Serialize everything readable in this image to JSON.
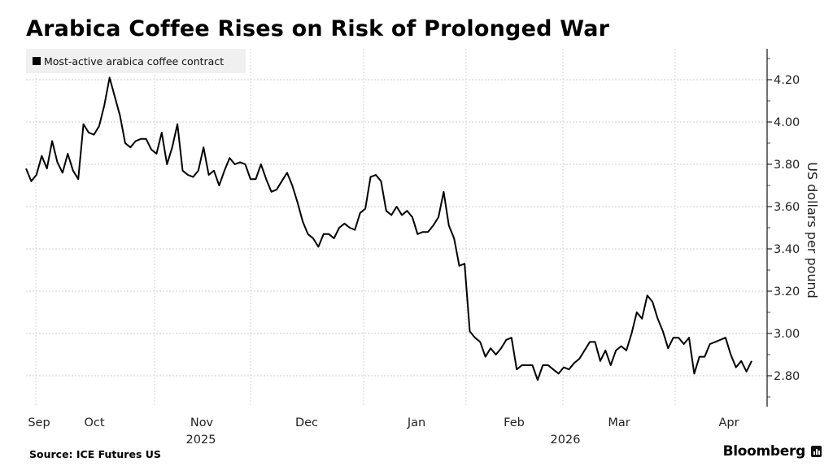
{
  "chart_data": {
    "type": "line",
    "title": "Arabica Coffee Rises on Risk of Prolonged War",
    "legend": [
      "Most-active arabica coffee contract"
    ],
    "legend_position": "top-left",
    "xlabel": "",
    "ylabel": "US dollars per pound",
    "y_axis_side": "right",
    "ylim": [
      2.66,
      4.34
    ],
    "yticks": [
      "2.80",
      "3.00",
      "3.20",
      "3.40",
      "3.60",
      "3.80",
      "4.00",
      "4.20"
    ],
    "ytick_values": [
      2.8,
      3.0,
      3.2,
      3.4,
      3.6,
      3.8,
      4.0,
      4.2
    ],
    "x_month_labels": [
      "Sep",
      "Oct",
      "Nov",
      "Dec",
      "Jan",
      "Feb",
      "Mar",
      "Apr"
    ],
    "x_year_labels": [
      "2025",
      "2026"
    ],
    "grid": true,
    "series": [
      {
        "name": "Most-active arabica coffee contract",
        "color": "#000000",
        "values": [
          3.78,
          3.72,
          3.75,
          3.84,
          3.78,
          3.91,
          3.81,
          3.76,
          3.85,
          3.77,
          3.73,
          3.99,
          3.95,
          3.94,
          3.98,
          4.08,
          4.21,
          4.12,
          4.03,
          3.9,
          3.88,
          3.91,
          3.92,
          3.92,
          3.87,
          3.85,
          3.95,
          3.8,
          3.88,
          3.99,
          3.77,
          3.75,
          3.74,
          3.77,
          3.88,
          3.75,
          3.77,
          3.7,
          3.77,
          3.83,
          3.8,
          3.81,
          3.8,
          3.73,
          3.73,
          3.8,
          3.73,
          3.67,
          3.68,
          3.72,
          3.76,
          3.7,
          3.62,
          3.53,
          3.47,
          3.45,
          3.41,
          3.47,
          3.47,
          3.45,
          3.5,
          3.52,
          3.5,
          3.49,
          3.57,
          3.59,
          3.74,
          3.75,
          3.72,
          3.58,
          3.56,
          3.6,
          3.56,
          3.58,
          3.55,
          3.47,
          3.48,
          3.48,
          3.51,
          3.55,
          3.67,
          3.51,
          3.45,
          3.32,
          3.33,
          3.01,
          2.98,
          2.96,
          2.89,
          2.93,
          2.9,
          2.93,
          2.97,
          2.98,
          2.83,
          2.85,
          2.85,
          2.85,
          2.78,
          2.85,
          2.85,
          2.83,
          2.81,
          2.84,
          2.83,
          2.86,
          2.88,
          2.92,
          2.96,
          2.96,
          2.87,
          2.92,
          2.85,
          2.92,
          2.94,
          2.92,
          3.0,
          3.1,
          3.07,
          3.18,
          3.15,
          3.07,
          3.01,
          2.93,
          2.98,
          2.98,
          2.95,
          2.98,
          2.81,
          2.89,
          2.89,
          2.95,
          2.96,
          2.97,
          2.98,
          2.9,
          2.84,
          2.87,
          2.82,
          2.87
        ]
      }
    ],
    "source": "Source: ICE Futures US",
    "brand": "Bloomberg"
  }
}
